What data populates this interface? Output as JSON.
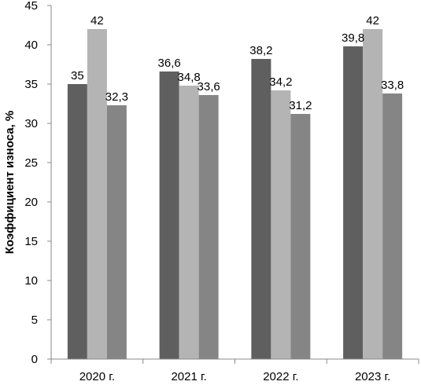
{
  "chart_data": {
    "type": "bar",
    "title": "",
    "xlabel": "",
    "ylabel": "Коэффициент износа, %",
    "ylim": [
      0,
      45
    ],
    "yticks": [
      0,
      5,
      10,
      15,
      20,
      25,
      30,
      35,
      40,
      45
    ],
    "grid": false,
    "legend": "none",
    "categories": [
      "2020 г.",
      "2021 г.",
      "2022 г.",
      "2023 г."
    ],
    "series": [
      {
        "values": [
          35,
          36.6,
          38.2,
          39.8
        ],
        "labels": [
          "35",
          "36,6",
          "38,2",
          "39,8"
        ],
        "color": "#5f5f5f"
      },
      {
        "values": [
          42,
          34.8,
          34.2,
          42
        ],
        "labels": [
          "42",
          "34,8",
          "34,2",
          "42"
        ],
        "color": "#b4b4b4"
      },
      {
        "values": [
          32.3,
          33.6,
          31.2,
          33.8
        ],
        "labels": [
          "32,3",
          "33,6",
          "31,2",
          "33,8"
        ],
        "color": "#858585"
      }
    ]
  }
}
